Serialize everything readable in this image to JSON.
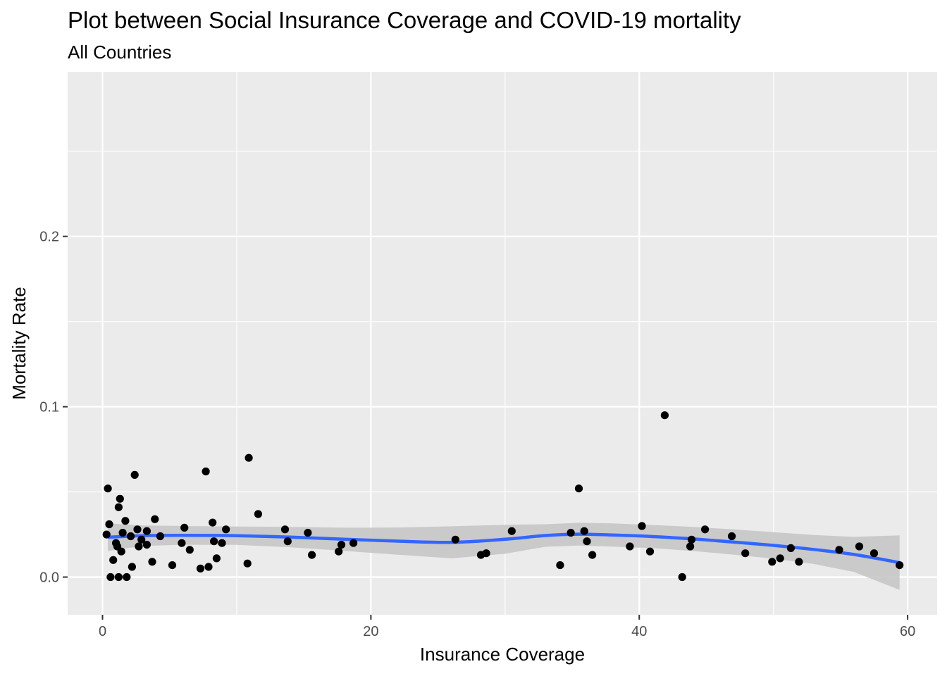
{
  "chart_data": {
    "type": "scatter",
    "title": "Plot between Social Insurance Coverage and COVID-19 mortality",
    "subtitle": "All Countries",
    "xlabel": "Insurance Coverage",
    "ylabel": "Mortality Rate",
    "xlim": [
      -2.6,
      62.2
    ],
    "ylim": [
      -0.0221,
      0.2966
    ],
    "x_ticks": [
      0,
      20,
      40,
      60
    ],
    "y_ticks": [
      0.0,
      0.1,
      0.2
    ],
    "x_tick_labels": [
      "0",
      "20",
      "40",
      "60"
    ],
    "y_tick_labels": [
      "0.0",
      "0.1",
      "0.2"
    ],
    "grid": true,
    "colors": {
      "panel": "#ebebeb",
      "grid": "#ffffff",
      "points": "#000000",
      "smooth": "#3366ff",
      "band": "#c6c6c6"
    },
    "points": [
      {
        "x": 0.3,
        "y": 0.025
      },
      {
        "x": 0.4,
        "y": 0.052
      },
      {
        "x": 0.5,
        "y": 0.031
      },
      {
        "x": 0.6,
        "y": 0.0
      },
      {
        "x": 0.8,
        "y": 0.01
      },
      {
        "x": 1.0,
        "y": 0.02
      },
      {
        "x": 1.1,
        "y": 0.018
      },
      {
        "x": 1.2,
        "y": 0.0
      },
      {
        "x": 1.2,
        "y": 0.041
      },
      {
        "x": 1.3,
        "y": 0.046
      },
      {
        "x": 1.4,
        "y": 0.015
      },
      {
        "x": 1.5,
        "y": 0.026
      },
      {
        "x": 1.7,
        "y": 0.033
      },
      {
        "x": 1.8,
        "y": 0.0
      },
      {
        "x": 2.1,
        "y": 0.024
      },
      {
        "x": 2.2,
        "y": 0.006
      },
      {
        "x": 2.4,
        "y": 0.06
      },
      {
        "x": 2.6,
        "y": 0.028
      },
      {
        "x": 2.7,
        "y": 0.018
      },
      {
        "x": 2.9,
        "y": 0.022
      },
      {
        "x": 3.3,
        "y": 0.027
      },
      {
        "x": 3.3,
        "y": 0.019
      },
      {
        "x": 3.7,
        "y": 0.009
      },
      {
        "x": 3.9,
        "y": 0.034
      },
      {
        "x": 4.3,
        "y": 0.024
      },
      {
        "x": 5.2,
        "y": 0.007
      },
      {
        "x": 5.9,
        "y": 0.02
      },
      {
        "x": 6.1,
        "y": 0.029
      },
      {
        "x": 6.5,
        "y": 0.016
      },
      {
        "x": 7.3,
        "y": 0.005
      },
      {
        "x": 7.7,
        "y": 0.062
      },
      {
        "x": 7.9,
        "y": 0.006
      },
      {
        "x": 8.2,
        "y": 0.032
      },
      {
        "x": 8.3,
        "y": 0.021
      },
      {
        "x": 8.5,
        "y": 0.011
      },
      {
        "x": 8.9,
        "y": 0.02
      },
      {
        "x": 9.2,
        "y": 0.028
      },
      {
        "x": 10.8,
        "y": 0.008
      },
      {
        "x": 10.9,
        "y": 0.07
      },
      {
        "x": 11.6,
        "y": 0.037
      },
      {
        "x": 13.6,
        "y": 0.028
      },
      {
        "x": 13.8,
        "y": 0.021
      },
      {
        "x": 15.3,
        "y": 0.026
      },
      {
        "x": 15.6,
        "y": 0.013
      },
      {
        "x": 17.6,
        "y": 0.015
      },
      {
        "x": 17.8,
        "y": 0.019
      },
      {
        "x": 18.7,
        "y": 0.02
      },
      {
        "x": 26.3,
        "y": 0.022
      },
      {
        "x": 28.2,
        "y": 0.013
      },
      {
        "x": 28.6,
        "y": 0.014
      },
      {
        "x": 30.5,
        "y": 0.027
      },
      {
        "x": 34.1,
        "y": 0.007
      },
      {
        "x": 34.9,
        "y": 0.026
      },
      {
        "x": 35.5,
        "y": 0.052
      },
      {
        "x": 35.9,
        "y": 0.027
      },
      {
        "x": 36.1,
        "y": 0.021
      },
      {
        "x": 36.5,
        "y": 0.013
      },
      {
        "x": 39.3,
        "y": 0.018
      },
      {
        "x": 40.2,
        "y": 0.03
      },
      {
        "x": 40.8,
        "y": 0.015
      },
      {
        "x": 41.9,
        "y": 0.095
      },
      {
        "x": 43.2,
        "y": 0.0
      },
      {
        "x": 43.8,
        "y": 0.018
      },
      {
        "x": 43.9,
        "y": 0.022
      },
      {
        "x": 44.9,
        "y": 0.028
      },
      {
        "x": 46.9,
        "y": 0.024
      },
      {
        "x": 47.9,
        "y": 0.014
      },
      {
        "x": 49.9,
        "y": 0.009
      },
      {
        "x": 50.5,
        "y": 0.011
      },
      {
        "x": 51.3,
        "y": 0.017
      },
      {
        "x": 51.9,
        "y": 0.009
      },
      {
        "x": 54.9,
        "y": 0.016
      },
      {
        "x": 56.4,
        "y": 0.018
      },
      {
        "x": 57.5,
        "y": 0.014
      },
      {
        "x": 59.4,
        "y": 0.007
      }
    ],
    "smooth": {
      "x": [
        0.4,
        3,
        6,
        10,
        14,
        18,
        22,
        26,
        30,
        33,
        35.5,
        38,
        41,
        44,
        47,
        50,
        53,
        56,
        59.4
      ],
      "y": [
        0.0234,
        0.0243,
        0.0245,
        0.0243,
        0.0235,
        0.0222,
        0.0211,
        0.0204,
        0.0222,
        0.0244,
        0.0252,
        0.0247,
        0.0238,
        0.0224,
        0.0206,
        0.0186,
        0.0162,
        0.0133,
        0.0085
      ],
      "lower": [
        0.0153,
        0.0183,
        0.019,
        0.0189,
        0.0175,
        0.0154,
        0.0131,
        0.011,
        0.0137,
        0.0178,
        0.0185,
        0.0179,
        0.017,
        0.0153,
        0.0132,
        0.0108,
        0.0077,
        0.003,
        -0.0075
      ],
      "upper": [
        0.0315,
        0.0303,
        0.03,
        0.0297,
        0.0295,
        0.029,
        0.0291,
        0.0298,
        0.0307,
        0.031,
        0.0319,
        0.0315,
        0.0306,
        0.0295,
        0.028,
        0.0264,
        0.0247,
        0.0236,
        0.0245
      ]
    }
  }
}
